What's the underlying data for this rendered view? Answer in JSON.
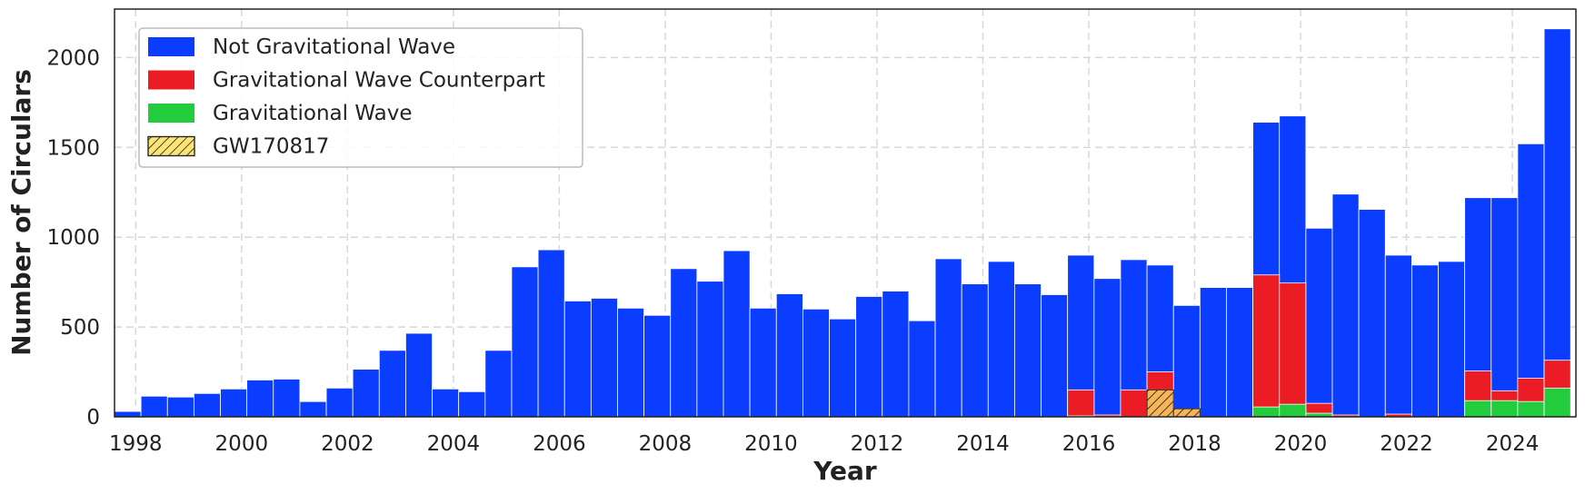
{
  "chart_data": {
    "type": "bar",
    "xlabel": "Year",
    "ylabel": "Number of Circulars",
    "xlim": [
      1997.6,
      2025.2
    ],
    "ylim": [
      0,
      2270
    ],
    "grid": true,
    "legend_position": "top-left",
    "x_ticks": [
      "1998",
      "2000",
      "2002",
      "2004",
      "2006",
      "2008",
      "2010",
      "2012",
      "2014",
      "2016",
      "2018",
      "2020",
      "2022",
      "2024"
    ],
    "y_ticks": [
      "0",
      "500",
      "1000",
      "1500",
      "2000"
    ],
    "bin_starts": [
      1997.6,
      1998.1,
      1998.6,
      1999.1,
      1999.6,
      2000.1,
      2000.6,
      2001.1,
      2001.6,
      2002.1,
      2002.6,
      2003.1,
      2003.6,
      2004.1,
      2004.6,
      2005.1,
      2005.6,
      2006.1,
      2006.6,
      2007.1,
      2007.6,
      2008.1,
      2008.6,
      2009.1,
      2009.6,
      2010.1,
      2010.6,
      2011.1,
      2011.6,
      2012.1,
      2012.6,
      2013.1,
      2013.6,
      2014.1,
      2014.6,
      2015.1,
      2015.6,
      2016.1,
      2016.6,
      2017.1,
      2017.6,
      2018.1,
      2018.6,
      2019.1,
      2019.6,
      2020.1,
      2020.6,
      2021.1,
      2021.6,
      2022.1,
      2022.6,
      2023.1,
      2023.6,
      2024.1,
      2024.6
    ],
    "bin_width": 0.5,
    "series": [
      {
        "name": "Not Gravitational Wave",
        "color": "#0a3dff",
        "totals": [
          30,
          115,
          110,
          130,
          155,
          205,
          210,
          85,
          160,
          265,
          370,
          465,
          155,
          140,
          370,
          835,
          930,
          645,
          660,
          605,
          565,
          825,
          755,
          925,
          605,
          685,
          600,
          545,
          670,
          700,
          535,
          880,
          740,
          865,
          740,
          680,
          900,
          770,
          875,
          845,
          620,
          720,
          720,
          1640,
          1675,
          1050,
          1240,
          1155,
          900,
          845,
          865,
          1220,
          1220,
          1520,
          2160
        ]
      },
      {
        "name": "Gravitational Wave Counterpart",
        "color": "#ec1c24",
        "totals": [
          0,
          0,
          0,
          0,
          0,
          0,
          0,
          0,
          0,
          0,
          0,
          0,
          0,
          0,
          0,
          0,
          0,
          0,
          0,
          0,
          0,
          0,
          0,
          0,
          0,
          0,
          0,
          0,
          0,
          0,
          0,
          0,
          0,
          0,
          0,
          0,
          150,
          10,
          150,
          250,
          0,
          0,
          0,
          790,
          745,
          75,
          10,
          0,
          15,
          0,
          0,
          255,
          145,
          215,
          315
        ]
      },
      {
        "name": "Gravitational Wave",
        "color": "#22cc3c",
        "totals": [
          0,
          0,
          0,
          0,
          0,
          0,
          0,
          0,
          0,
          0,
          0,
          0,
          0,
          0,
          0,
          0,
          0,
          0,
          0,
          0,
          0,
          0,
          0,
          0,
          0,
          0,
          0,
          0,
          0,
          0,
          0,
          0,
          0,
          0,
          0,
          0,
          5,
          0,
          0,
          0,
          0,
          0,
          0,
          55,
          70,
          20,
          0,
          0,
          0,
          0,
          0,
          90,
          90,
          85,
          160
        ]
      },
      {
        "name": "GW170817",
        "color": "#f7b55a",
        "legend_color": "#fde477",
        "hatch": true,
        "totals": [
          0,
          0,
          0,
          0,
          0,
          0,
          0,
          0,
          0,
          0,
          0,
          0,
          0,
          0,
          0,
          0,
          0,
          0,
          0,
          0,
          0,
          0,
          0,
          0,
          0,
          0,
          0,
          0,
          0,
          0,
          0,
          0,
          0,
          0,
          0,
          0,
          0,
          0,
          0,
          150,
          45,
          0,
          0,
          0,
          0,
          0,
          0,
          0,
          0,
          0,
          0,
          0,
          0,
          0,
          0
        ]
      }
    ]
  }
}
